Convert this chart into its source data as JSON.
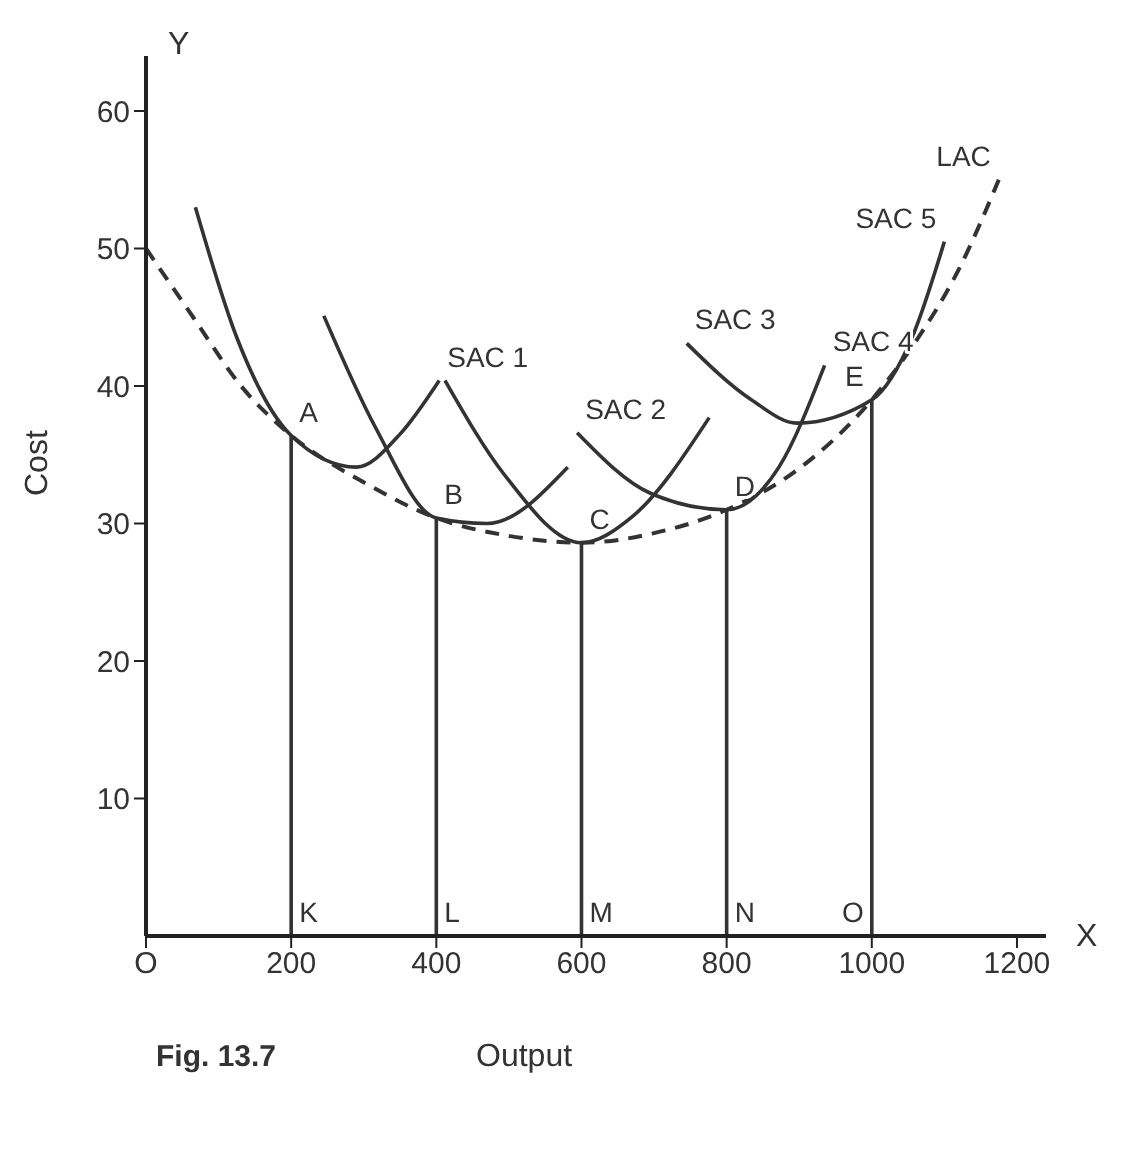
{
  "chart_data": {
    "type": "line",
    "xlabel": "Output",
    "ylabel": "Cost",
    "xlim": [
      0,
      1240
    ],
    "ylim": [
      0,
      64
    ],
    "xticks": [
      {
        "value": 0,
        "label": "O"
      },
      200,
      400,
      600,
      800,
      {
        "value": 1000,
        "label": "1000"
      },
      1200
    ],
    "yticks": [
      10,
      20,
      30,
      40,
      50,
      60
    ],
    "grid": false,
    "marker": "none",
    "series": [
      {
        "color": "#333333",
        "line_style": "dashed",
        "x": [
          0,
          65,
          131,
          200,
          300,
          400,
          500,
          600,
          700,
          800,
          900,
          1000,
          1060,
          1120,
          1175
        ],
        "values": [
          50,
          45,
          40,
          36.4,
          33,
          30.4,
          29.1,
          28.6,
          29.3,
          31,
          34,
          39,
          43.2,
          48.5,
          55
        ]
      },
      {
        "color": "#333333",
        "line_style": "solid",
        "x": [
          68,
          126,
          200,
          290,
          350,
          404
        ],
        "values": [
          53,
          43.4,
          36.4,
          34.1,
          36.5,
          40.4
        ]
      },
      {
        "color": "#333333",
        "line_style": "solid",
        "x": [
          245,
          316,
          400,
          470,
          581
        ],
        "values": [
          45.1,
          37,
          30.4,
          30,
          34.1
        ]
      },
      {
        "color": "#333333",
        "line_style": "solid",
        "x": [
          412,
          493,
          600,
          670,
          776
        ],
        "values": [
          40.4,
          33.6,
          28.6,
          30.5,
          37.7
        ]
      },
      {
        "color": "#333333",
        "line_style": "solid",
        "x": [
          594,
          695,
          800,
          872,
          935
        ],
        "values": [
          36.6,
          32.2,
          31,
          34.1,
          41.5
        ]
      },
      {
        "color": "#333333",
        "line_style": "solid",
        "x": [
          745,
          834,
          897,
          1000,
          1056,
          1100
        ],
        "values": [
          43.1,
          39,
          37.3,
          39,
          43.6,
          50.5
        ]
      },
      {
        "color": "#333333",
        "line_style": "solid",
        "x": [
          200,
          200
        ],
        "values": [
          0,
          36.4
        ]
      },
      {
        "color": "#333333",
        "line_style": "solid",
        "x": [
          400,
          400
        ],
        "values": [
          0,
          30.4
        ]
      },
      {
        "color": "#333333",
        "line_style": "solid",
        "x": [
          600,
          600
        ],
        "values": [
          0,
          28.6
        ]
      },
      {
        "color": "#333333",
        "line_style": "solid",
        "x": [
          800,
          800
        ],
        "values": [
          0,
          31
        ]
      },
      {
        "color": "#333333",
        "line_style": "solid",
        "x": [
          1000,
          1000
        ],
        "values": [
          0,
          39
        ]
      }
    ],
    "annotations": [
      {
        "text": "A",
        "x": 200,
        "y": 36.4
      },
      {
        "text": "B",
        "x": 400,
        "y": 30.4
      },
      {
        "text": "C",
        "x": 600,
        "y": 28.6
      },
      {
        "text": "D",
        "x": 800,
        "y": 31
      },
      {
        "text": "E",
        "x": 1000,
        "y": 39
      },
      {
        "text": "K",
        "x": 200,
        "y": 0
      },
      {
        "text": "L",
        "x": 400,
        "y": 0
      },
      {
        "text": "M",
        "x": 600,
        "y": 0
      },
      {
        "text": "N",
        "x": 800,
        "y": 0
      },
      {
        "text": "O",
        "x": 1000,
        "y": 0
      },
      {
        "text": "SAC 1",
        "x": 404,
        "y": 40.4
      },
      {
        "text": "SAC 2",
        "x": 594,
        "y": 36.6
      },
      {
        "text": "SAC 3",
        "x": 745,
        "y": 43.1
      },
      {
        "text": "SAC 4",
        "x": 935,
        "y": 41.5
      },
      {
        "text": "SAC 5",
        "x": 1100,
        "y": 50.5
      },
      {
        "text": "LAC",
        "x": 1175,
        "y": 55
      },
      "Y",
      "X",
      "Fig. 13.7"
    ]
  }
}
